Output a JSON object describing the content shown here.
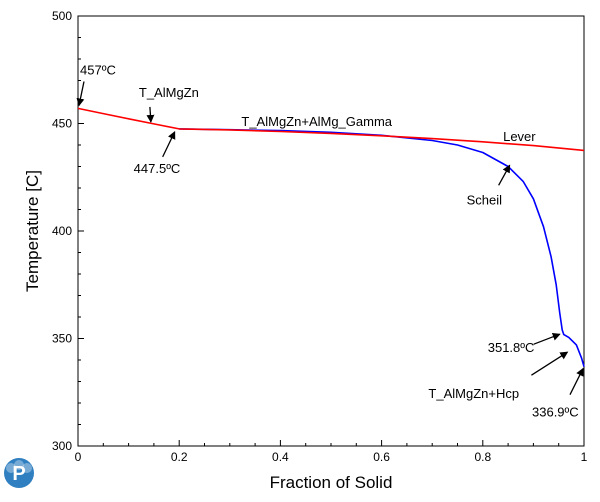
{
  "chart_data": {
    "type": "line",
    "xlabel": "Fraction of Solid",
    "ylabel": "Temperature [C]",
    "xlim": [
      0,
      1
    ],
    "ylim": [
      300,
      500
    ],
    "x_ticks": [
      "0",
      "0.2",
      "0.4",
      "0.6",
      "0.8",
      "1"
    ],
    "y_ticks": [
      "500",
      "450",
      "400",
      "350",
      "300"
    ],
    "grid": false,
    "legend": "none",
    "series": [
      {
        "name": "Lever",
        "color": "#ff0000",
        "x": [
          0.0,
          0.05,
          0.1,
          0.15,
          0.2,
          0.3,
          0.4,
          0.5,
          0.6,
          0.7,
          0.8,
          0.9,
          1.0
        ],
        "y": [
          457.0,
          454.6,
          452.2,
          449.8,
          447.5,
          447.0,
          446.3,
          445.4,
          444.3,
          443.0,
          441.5,
          439.7,
          437.5
        ]
      },
      {
        "name": "Scheil",
        "color": "#0000ff",
        "x": [
          0.2,
          0.3,
          0.4,
          0.5,
          0.6,
          0.7,
          0.75,
          0.8,
          0.85,
          0.88,
          0.9,
          0.92,
          0.935,
          0.945,
          0.952,
          0.957,
          0.96,
          0.97,
          0.985,
          0.995,
          1.0
        ],
        "y": [
          447.5,
          447.1,
          446.7,
          445.9,
          444.5,
          442.1,
          440.0,
          436.5,
          430.0,
          423.0,
          415.0,
          402.0,
          388.0,
          375.0,
          362.0,
          354.0,
          351.8,
          350.5,
          347.0,
          341.0,
          336.9
        ]
      }
    ],
    "annotations": [
      {
        "text": "457ºC",
        "x": 0.0,
        "y": 457.0
      },
      {
        "text": "T_AlMgZn",
        "x": 0.15,
        "y": 449.8
      },
      {
        "text": "447.5ºC",
        "x": 0.195,
        "y": 447.5
      },
      {
        "text": "T_AlMgZn+AlMg_Gamma",
        "x": 0.4,
        "y": 446.5
      },
      {
        "text": "Lever",
        "x": 0.85,
        "y": 440.5
      },
      {
        "text": "Scheil",
        "x": 0.855,
        "y": 431.0
      },
      {
        "text": "351.8ºC",
        "x": 0.958,
        "y": 352.0
      },
      {
        "text": "T_AlMgZn+Hcp",
        "x": 0.985,
        "y": 345.5
      },
      {
        "text": "336.9ºC",
        "x": 1.0,
        "y": 336.9
      }
    ]
  },
  "logo": {
    "name": "P",
    "color": "#2f7fc1"
  }
}
